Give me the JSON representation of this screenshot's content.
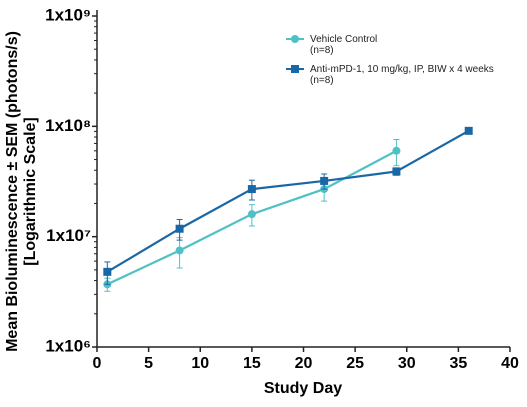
{
  "chart_data": {
    "type": "line",
    "x_label": "Study Day",
    "y_label": "Mean Bioluminescence ± SEM (photons/s)\n[Logarithmic Scale]",
    "xlim": [
      0,
      40
    ],
    "xticks": [
      0,
      5,
      10,
      15,
      20,
      25,
      30,
      35,
      40
    ],
    "ylim": [
      1000000,
      1000000000
    ],
    "yticks": [
      {
        "value": 1000000,
        "label": "1x10⁶"
      },
      {
        "value": 10000000,
        "label": "1x10⁷"
      },
      {
        "value": 100000000,
        "label": "1x10⁸"
      },
      {
        "value": 1000000000,
        "label": "1x10⁹"
      }
    ],
    "log_y": true,
    "grid": false,
    "legend": "top-right",
    "series": [
      {
        "name": "Vehicle Control\n(n=8)",
        "color": "#4fc1c6",
        "marker": "circle",
        "x": [
          1,
          8,
          15,
          22,
          29
        ],
        "values": [
          3700000,
          7500000,
          16000000,
          27000000,
          60000000
        ],
        "errors": [
          500000,
          2300000,
          3500000,
          6000000,
          16000000
        ]
      },
      {
        "name": "Anti-mPD-1, 10 mg/kg, IP, BIW x 4 weeks\n(n=8)",
        "color": "#1a67a5",
        "marker": "square",
        "x": [
          1,
          8,
          15,
          22,
          29,
          36
        ],
        "values": [
          4800000,
          11800000,
          27000000,
          32000000,
          39000000,
          91000000
        ],
        "errors": [
          1100000,
          2500000,
          5500000,
          5000000,
          3000000,
          4000000
        ]
      }
    ]
  }
}
